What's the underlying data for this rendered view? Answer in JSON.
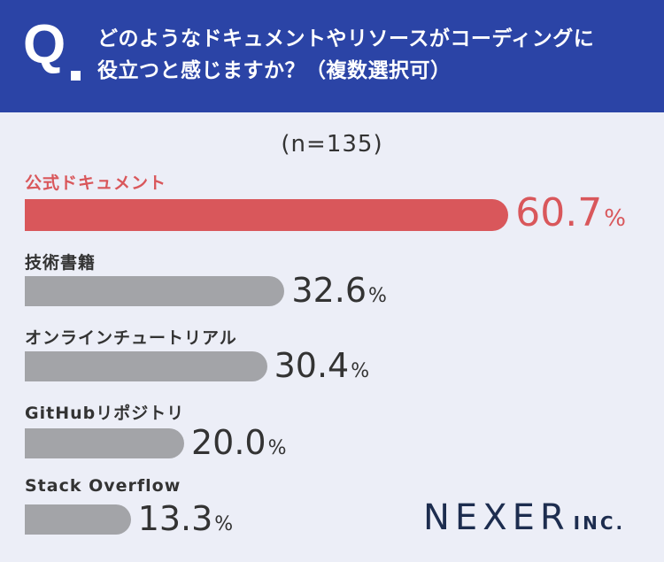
{
  "header": {
    "q_label": "Q",
    "question_lines": [
      "どのようなドキュメントやリソースがコーディングに",
      "役立つと感じますか？（複数選択可）"
    ]
  },
  "sample_label": "(n=135)",
  "brand": {
    "name": "NEXER",
    "suffix": "INC."
  },
  "colors": {
    "header": "#2b44a6",
    "highlight": "#d9575b",
    "bar": "#a3a4a8",
    "background": "#eceef7"
  },
  "chart_data": {
    "type": "bar",
    "orientation": "horizontal",
    "categories": [
      "公式ドキュメント",
      "技術書籍",
      "オンラインチュートリアル",
      "GitHubリポジトリ",
      "Stack Overflow"
    ],
    "values": [
      60.7,
      32.6,
      30.4,
      20.0,
      13.3
    ],
    "value_labels": [
      "60.7",
      "32.6",
      "30.4",
      "20.0",
      "13.3"
    ],
    "unit": "%",
    "highlight_index": 0
  }
}
